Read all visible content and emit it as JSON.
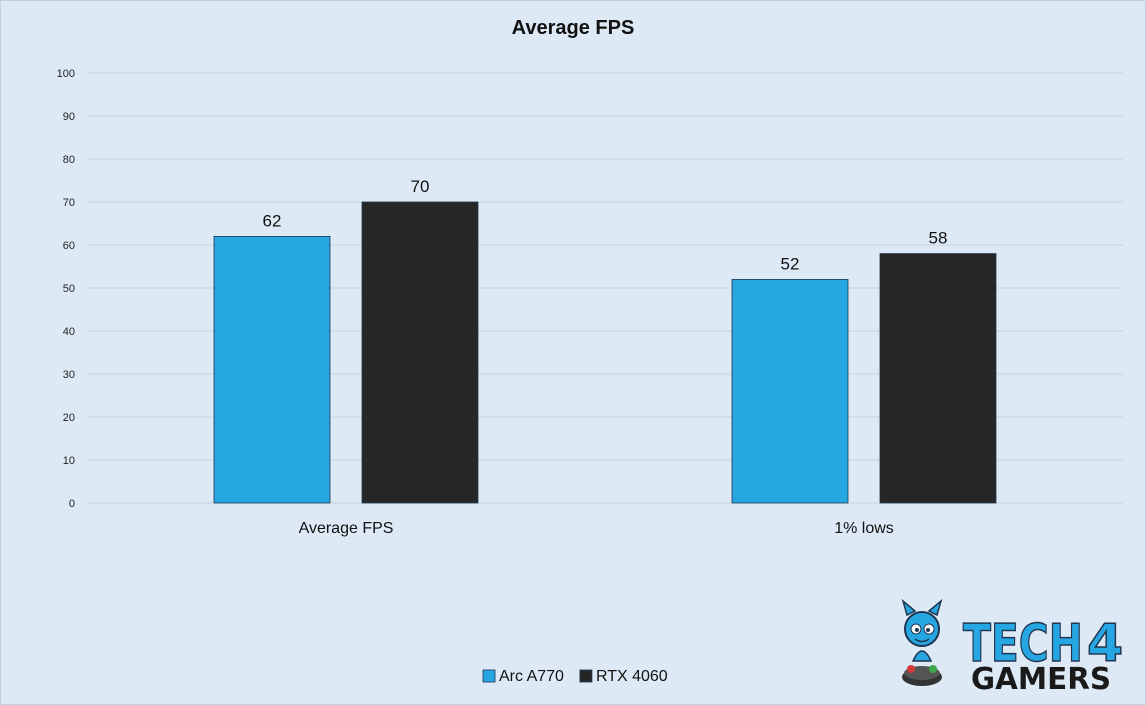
{
  "chart_data": {
    "type": "bar",
    "title": "Average FPS",
    "categories": [
      "Average FPS",
      "1% lows"
    ],
    "series": [
      {
        "name": "Arc A770",
        "values": [
          62,
          52
        ],
        "color": "#27a7e2"
      },
      {
        "name": "RTX 4060",
        "values": [
          70,
          58
        ],
        "color": "#262626"
      }
    ],
    "ylim": [
      0,
      100
    ],
    "yticks": [
      0,
      10,
      20,
      30,
      40,
      50,
      60,
      70,
      80,
      90,
      100
    ],
    "grid": true,
    "legend": "bottom-center",
    "data_labels": true
  },
  "watermark": {
    "line1": "TECH",
    "line1_digit": "4",
    "line2": "GAMERS",
    "colors": {
      "tech": "#27a7e2",
      "gamers": "#1a1a1a"
    }
  }
}
